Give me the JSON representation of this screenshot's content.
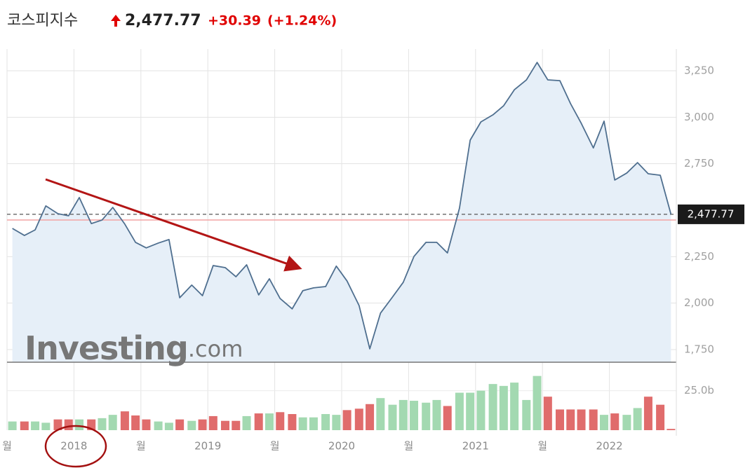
{
  "header": {
    "name": "코스피지수",
    "change": "+30.39",
    "change_percent": "(+1.24%)"
  },
  "chart_data": {
    "type": "line",
    "x": [
      2017.54,
      2017.63,
      2017.71,
      2017.79,
      2017.88,
      2017.96,
      2018.04,
      2018.13,
      2018.21,
      2018.29,
      2018.38,
      2018.46,
      2018.54,
      2018.63,
      2018.71,
      2018.79,
      2018.88,
      2018.96,
      2019.04,
      2019.13,
      2019.21,
      2019.29,
      2019.38,
      2019.46,
      2019.54,
      2019.63,
      2019.71,
      2019.79,
      2019.88,
      2019.96,
      2020.04,
      2020.13,
      2020.21,
      2020.29,
      2020.38,
      2020.46,
      2020.54,
      2020.63,
      2020.71,
      2020.79,
      2020.88,
      2020.96,
      2021.04,
      2021.13,
      2021.21,
      2021.29,
      2021.38,
      2021.46,
      2021.54,
      2021.63,
      2021.71,
      2021.79,
      2021.88,
      2021.96,
      2022.04,
      2022.13,
      2022.21,
      2022.29,
      2022.38,
      2022.46
    ],
    "xlim": [
      2017.5,
      2022.5
    ],
    "xticks": [
      {
        "value": 2017.5,
        "label": "월"
      },
      2018,
      {
        "value": 2018.5,
        "label": "월"
      },
      2019,
      {
        "value": 2019.5,
        "label": "월"
      },
      2020,
      {
        "value": 2020.5,
        "label": "월"
      },
      2021,
      {
        "value": 2021.5,
        "label": "월"
      },
      2022
    ],
    "series": [
      {
        "color": "#4f6f8f",
        "fill": "#e6eff8",
        "values": [
          2402,
          2364,
          2394,
          2523,
          2481,
          2470,
          2568,
          2428,
          2447,
          2515,
          2425,
          2327,
          2297,
          2323,
          2342,
          2029,
          2097,
          2040,
          2202,
          2191,
          2142,
          2206,
          2044,
          2131,
          2025,
          1969,
          2067,
          2082,
          2089,
          2199,
          2119,
          1987,
          1754,
          1946,
          2033,
          2112,
          2251,
          2327,
          2327,
          2270,
          2511,
          2877,
          2975,
          3013,
          3062,
          3148,
          3201,
          3295,
          3201,
          3197,
          3073,
          2967,
          2835,
          2979,
          2662,
          2700,
          2756,
          2696,
          2688,
          2477.77
        ]
      }
    ],
    "ylim": [
      1682,
      3367
    ],
    "yticks": [
      {
        "value": 1750,
        "label": "1,750"
      },
      {
        "value": 2000,
        "label": "2,000"
      },
      {
        "value": 2250,
        "label": "2,250"
      },
      {
        "value": 2750,
        "label": "2,750"
      },
      {
        "value": 3000,
        "label": "3,000"
      },
      {
        "value": 3250,
        "label": "3,250"
      }
    ],
    "grid": true,
    "current_price": {
      "value": 2477.77,
      "label": "2,477.77"
    },
    "previous_close": 2447.38,
    "volume": {
      "ylim": [
        0,
        43
      ],
      "yticks": [
        {
          "value": 25,
          "label": "25.0b"
        }
      ],
      "values": [
        5.5,
        5.5,
        5.5,
        4.7,
        6.8,
        6.8,
        6.8,
        6.8,
        7.6,
        9.7,
        11.9,
        9.3,
        6.8,
        5.5,
        4.7,
        6.8,
        5.9,
        6.8,
        8.9,
        5.9,
        5.9,
        8.9,
        10.6,
        10.6,
        11.4,
        10.2,
        8.1,
        8.1,
        10.2,
        9.7,
        12.7,
        13.6,
        16.5,
        20.3,
        16.1,
        19.1,
        18.6,
        17.4,
        19.1,
        15.3,
        23.7,
        23.7,
        25.0,
        29.2,
        28.0,
        30.1,
        19.1,
        34.3,
        21.2,
        13.1,
        13.1,
        13.1,
        13.1,
        9.7,
        10.6,
        9.7,
        14.0,
        21.2,
        16.1,
        0.8
      ],
      "colors": [
        "#a3d9b1",
        "#e06c6c",
        "#a3d9b1",
        "#a3d9b1",
        "#e06c6c",
        "#e06c6c",
        "#a3d9b1",
        "#e06c6c",
        "#a3d9b1",
        "#a3d9b1",
        "#e06c6c",
        "#e06c6c",
        "#e06c6c",
        "#a3d9b1",
        "#a3d9b1",
        "#e06c6c",
        "#a3d9b1",
        "#e06c6c",
        "#e06c6c",
        "#e06c6c",
        "#e06c6c",
        "#a3d9b1",
        "#e06c6c",
        "#a3d9b1",
        "#e06c6c",
        "#e06c6c",
        "#a3d9b1",
        "#a3d9b1",
        "#a3d9b1",
        "#a3d9b1",
        "#e06c6c",
        "#e06c6c",
        "#e06c6c",
        "#a3d9b1",
        "#a3d9b1",
        "#a3d9b1",
        "#a3d9b1",
        "#a3d9b1",
        "#a3d9b1",
        "#e06c6c",
        "#a3d9b1",
        "#a3d9b1",
        "#a3d9b1",
        "#a3d9b1",
        "#a3d9b1",
        "#a3d9b1",
        "#a3d9b1",
        "#a3d9b1",
        "#e06c6c",
        "#e06c6c",
        "#e06c6c",
        "#e06c6c",
        "#e06c6c",
        "#a3d9b1",
        "#e06c6c",
        "#a3d9b1",
        "#a3d9b1",
        "#e06c6c",
        "#e06c6c",
        "#e06c6c"
      ]
    },
    "watermark": {
      "brand": "Investing",
      "suffix": ".com"
    }
  }
}
